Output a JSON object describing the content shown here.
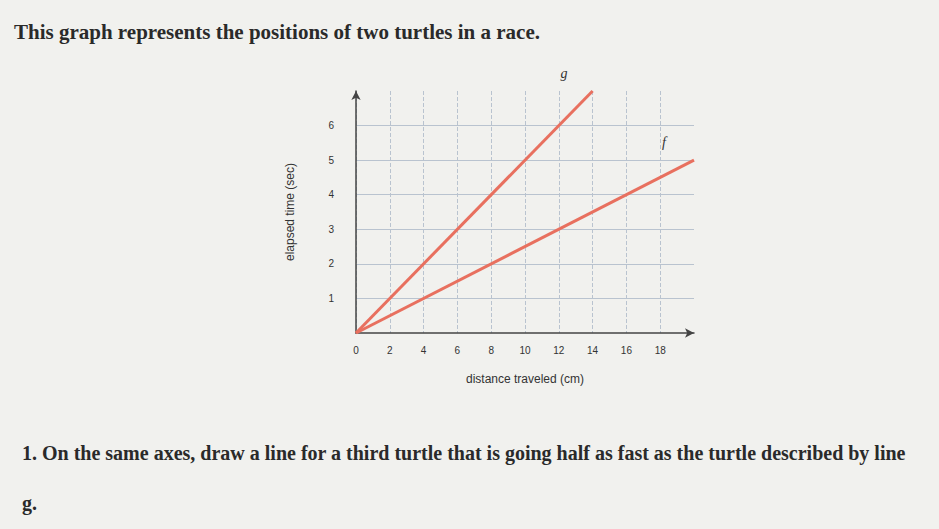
{
  "text": {
    "heading": "This graph represents the positions of two turtles in a race.",
    "question": "1. On the same axes, draw a line for a third turtle that is going half as fast as the turtle described by line g."
  },
  "chart_data": {
    "type": "line",
    "x_label": "distance traveled (cm)",
    "y_label": "elapsed time (sec)",
    "xlim": [
      0,
      20
    ],
    "ylim": [
      0,
      7
    ],
    "xticks": [
      0,
      2,
      4,
      6,
      8,
      10,
      12,
      14,
      16,
      18
    ],
    "yticks": [
      1,
      2,
      3,
      4,
      5,
      6
    ],
    "grid": true,
    "series": [
      {
        "name": "g",
        "color": "#e8705f",
        "x": [
          0,
          14
        ],
        "values": [
          0,
          7
        ]
      },
      {
        "name": "f",
        "color": "#e8705f",
        "x": [
          0,
          20
        ],
        "values": [
          0,
          5
        ]
      }
    ]
  }
}
